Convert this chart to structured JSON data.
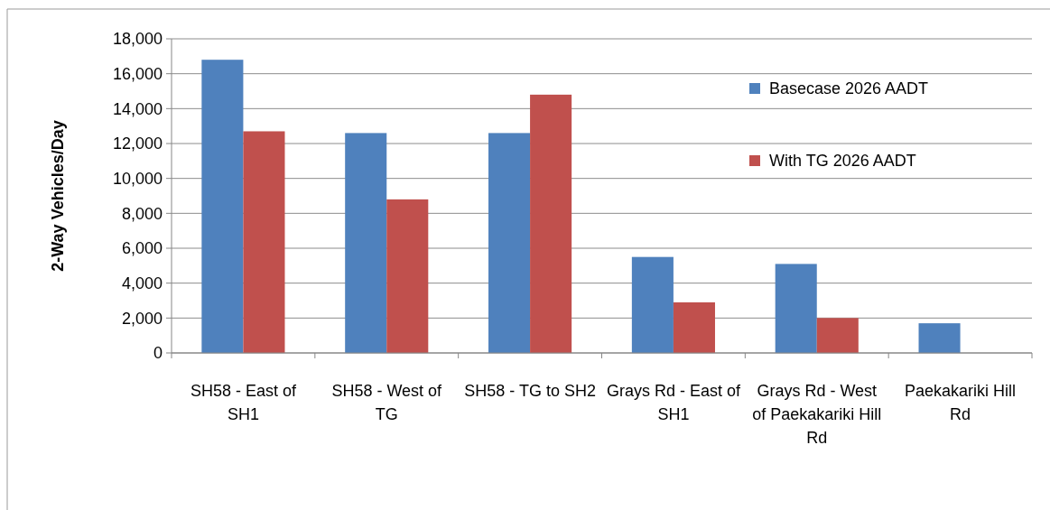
{
  "chart_data": {
    "type": "bar",
    "ylabel": "2-Way Vehicles/Day",
    "categories": [
      "SH58 - East of SH1",
      "SH58 - West of TG",
      "SH58 - TG to SH2",
      "Grays Rd - East of SH1",
      "Grays Rd - West of Paekakariki Hill Rd",
      "Paekakariki Hill Rd"
    ],
    "series": [
      {
        "name": "Basecase 2026 AADT",
        "color": "#4f81bd",
        "values": [
          16800,
          12600,
          12600,
          5500,
          5100,
          1700
        ]
      },
      {
        "name": "With TG 2026 AADT",
        "color": "#c0504d",
        "values": [
          12700,
          8800,
          14800,
          2900,
          2000,
          null
        ]
      }
    ],
    "ylim": [
      0,
      18000
    ],
    "yticks": [
      {
        "value": 0,
        "label": "0"
      },
      {
        "value": 2000,
        "label": "2,000"
      },
      {
        "value": 4000,
        "label": "4,000"
      },
      {
        "value": 6000,
        "label": "6,000"
      },
      {
        "value": 8000,
        "label": "8,000"
      },
      {
        "value": 10000,
        "label": "10,000"
      },
      {
        "value": 12000,
        "label": "12,000"
      },
      {
        "value": 14000,
        "label": "14,000"
      },
      {
        "value": 16000,
        "label": "16,000"
      },
      {
        "value": 18000,
        "label": "18,000"
      }
    ],
    "grid": "y",
    "legend": "top right"
  }
}
